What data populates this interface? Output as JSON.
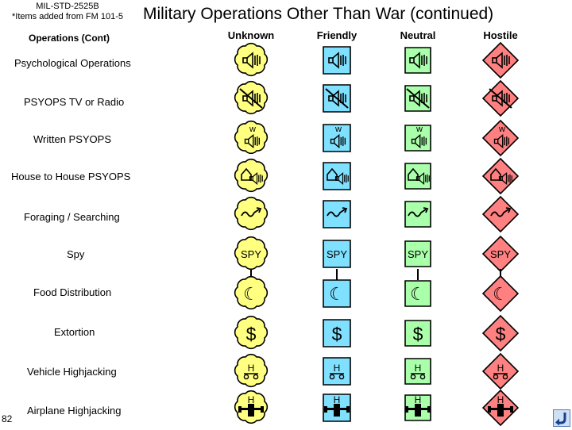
{
  "header": {
    "source_line1": "MIL-STD-2525B",
    "source_line2": "*Items added from FM 101-5",
    "title": "Military Operations Other Than War (continued)",
    "subtitle": "Operations (Cont)"
  },
  "columns": [
    "Unknown",
    "Friendly",
    "Neutral",
    "Hostile"
  ],
  "colors": {
    "unknown": "#FFFF80",
    "friendly": "#80E0FF",
    "neutral": "#AAFFAA",
    "hostile": "#FF8080"
  },
  "rows": [
    {
      "label": "Psychological Operations",
      "icon": "psyops-loudspeaker-icon"
    },
    {
      "label": "PSYOPS TV or Radio",
      "icon": "psyops-tv-radio-icon"
    },
    {
      "label": "Written PSYOPS",
      "icon": "written-psyops-icon",
      "glyph": "w"
    },
    {
      "label": "House to House PSYOPS",
      "icon": "house-to-house-icon"
    },
    {
      "label": "Foraging / Searching",
      "icon": "foraging-searching-icon"
    },
    {
      "label": "Spy",
      "icon": "spy-text",
      "glyph": "SPY"
    },
    {
      "label": "Food Distribution",
      "icon": "crescent-icon",
      "glyph": "☾"
    },
    {
      "label": "Extortion",
      "icon": "dollar-icon",
      "glyph": "$"
    },
    {
      "label": "Vehicle Highjacking",
      "icon": "vehicle-hijack-icon",
      "glyph": "H"
    },
    {
      "label": "Airplane Highjacking",
      "icon": "airplane-hijack-icon",
      "glyph": "H"
    }
  ],
  "page_number": "82",
  "nav": {
    "return_icon": "return-arrow-icon"
  }
}
